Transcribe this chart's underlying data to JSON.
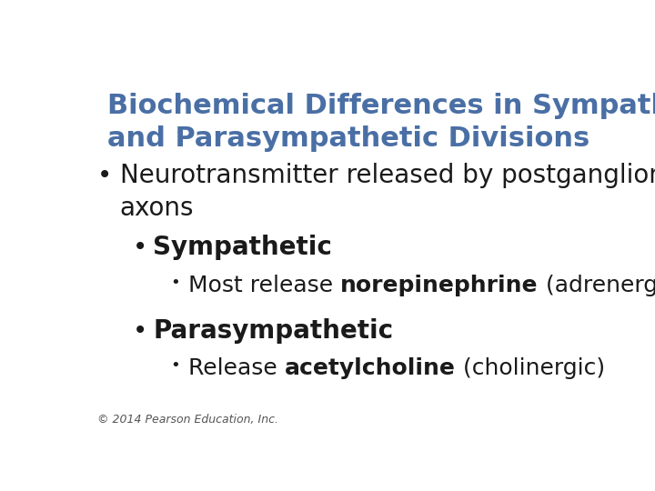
{
  "background_color": "#ffffff",
  "title_line1": "Biochemical Differences in Sympathetic",
  "title_line2": "and Parasympathetic Divisions",
  "title_color": "#4a6fa5",
  "title_fontsize": 22,
  "bullet1_color": "#1a1a1a",
  "bullet1_fontsize": 20,
  "sub_bullet1_label": "Sympathetic",
  "sub_bullet1_fontsize": 20,
  "sub_sub_bullet1_normal": "Most release ",
  "sub_sub_bullet1_bold": "norepinephrine",
  "sub_sub_bullet1_end": " (adrenergic)",
  "sub_sub_bullet1_fontsize": 18,
  "sub_bullet2_label": "Parasympathetic",
  "sub_bullet2_fontsize": 20,
  "sub_sub_bullet2_normal": "Release ",
  "sub_sub_bullet2_bold": "acetylcholine",
  "sub_sub_bullet2_end": " (cholinergic)",
  "sub_sub_bullet2_fontsize": 18,
  "footer_text": "© 2014 Pearson Education, Inc.",
  "footer_color": "#555555",
  "footer_fontsize": 9
}
